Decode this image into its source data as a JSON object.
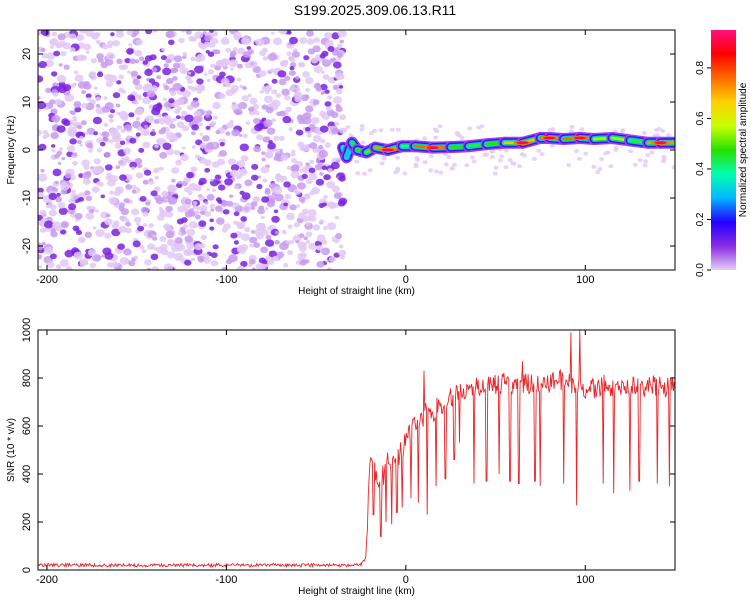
{
  "figure_title": "S199.2025.309.06.13.R11",
  "chart_data": [
    {
      "type": "heatmap",
      "title": "S199.2025.309.06.13.R11",
      "xlabel": "Height of straight line (km)",
      "ylabel": "Frequency (Hz)",
      "xlim": [
        -205,
        150
      ],
      "ylim": [
        -25,
        25
      ],
      "xticks": [
        -200,
        -100,
        0,
        100
      ],
      "xtick_labels": [
        "-200",
        "-100",
        "0",
        "100"
      ],
      "yticks": [
        -20,
        -10,
        0,
        10,
        20
      ],
      "ytick_labels": [
        "-20",
        "-10",
        "0",
        "10",
        "20"
      ],
      "colorbar": {
        "label": "Normalized spectral amplitude",
        "range": [
          0.0,
          0.95
        ],
        "ticks": [
          0.0,
          0.2,
          0.4,
          0.6,
          0.8
        ],
        "tick_labels": [
          "0.0",
          "0.2",
          "0.4",
          "0.6",
          "0.8"
        ],
        "colors": [
          "#e6cdf7",
          "#8a2be2",
          "#2200ff",
          "#00b7ff",
          "#00ffb0",
          "#28e000",
          "#c8ff00",
          "#ffd000",
          "#ff6a00",
          "#ff0000",
          "#ff1080"
        ]
      },
      "noise_region": {
        "x_range": [
          -205,
          -35
        ],
        "level": "0.0-0.2"
      },
      "ridge": [
        {
          "x": -35,
          "freq": 0.5,
          "amp": 0.4
        },
        {
          "x": -33,
          "freq": -1.5,
          "amp": 0.35
        },
        {
          "x": -30,
          "freq": 1.5,
          "amp": 0.35
        },
        {
          "x": -27,
          "freq": 0.0,
          "amp": 0.5
        },
        {
          "x": -22,
          "freq": -0.5,
          "amp": 0.55
        },
        {
          "x": -17,
          "freq": 0.5,
          "amp": 0.6
        },
        {
          "x": -10,
          "freq": 0.0,
          "amp": 0.85
        },
        {
          "x": -2,
          "freq": 0.8,
          "amp": 0.45
        },
        {
          "x": 5,
          "freq": 0.8,
          "amp": 0.4
        },
        {
          "x": 15,
          "freq": 0.5,
          "amp": 0.9
        },
        {
          "x": 25,
          "freq": 0.6,
          "amp": 0.55
        },
        {
          "x": 35,
          "freq": 0.8,
          "amp": 0.45
        },
        {
          "x": 45,
          "freq": 1.2,
          "amp": 0.5
        },
        {
          "x": 55,
          "freq": 1.5,
          "amp": 0.55
        },
        {
          "x": 65,
          "freq": 1.5,
          "amp": 0.8
        },
        {
          "x": 75,
          "freq": 2.5,
          "amp": 0.6
        },
        {
          "x": 80,
          "freq": 2.5,
          "amp": 0.9
        },
        {
          "x": 88,
          "freq": 2.3,
          "amp": 0.6
        },
        {
          "x": 97,
          "freq": 2.5,
          "amp": 0.9
        },
        {
          "x": 105,
          "freq": 2.3,
          "amp": 0.55
        },
        {
          "x": 115,
          "freq": 2.5,
          "amp": 0.65
        },
        {
          "x": 125,
          "freq": 2.0,
          "amp": 0.5
        },
        {
          "x": 135,
          "freq": 1.5,
          "amp": 0.5
        },
        {
          "x": 142,
          "freq": 1.5,
          "amp": 0.85
        },
        {
          "x": 150,
          "freq": 1.5,
          "amp": 0.5
        }
      ]
    },
    {
      "type": "line",
      "xlabel": "Height of straight line (km)",
      "ylabel": "SNR (10 * v/v)",
      "xlim": [
        -205,
        150
      ],
      "ylim": [
        0,
        1000
      ],
      "xticks": [
        -200,
        -100,
        0,
        100
      ],
      "xtick_labels": [
        "-200",
        "-100",
        "0",
        "100"
      ],
      "yticks": [
        0,
        200,
        400,
        600,
        800,
        1000
      ],
      "ytick_labels": [
        "0",
        "200",
        "400",
        "600",
        "800",
        "1000"
      ],
      "series": [
        {
          "name": "SNR",
          "color": "#e8262a",
          "x": [
            -205,
            -180,
            -150,
            -120,
            -100,
            -80,
            -60,
            -40,
            -25,
            -22,
            -20,
            -18,
            -15,
            -12,
            -10,
            -8,
            -5,
            -2,
            0,
            3,
            5,
            8,
            10,
            12,
            15,
            18,
            20,
            25,
            30,
            35,
            40,
            45,
            50,
            55,
            60,
            65,
            70,
            75,
            80,
            85,
            90,
            95,
            100,
            105,
            110,
            115,
            120,
            125,
            130,
            135,
            140,
            145,
            150
          ],
          "y": [
            20,
            20,
            20,
            20,
            20,
            20,
            20,
            20,
            20,
            60,
            480,
            420,
            380,
            400,
            450,
            420,
            470,
            500,
            560,
            560,
            620,
            640,
            640,
            680,
            620,
            700,
            690,
            720,
            740,
            760,
            770,
            760,
            770,
            780,
            770,
            770,
            780,
            790,
            780,
            800,
            780,
            770,
            760,
            760,
            770,
            760,
            770,
            760,
            770,
            760,
            770,
            760,
            760
          ]
        }
      ],
      "dips": [
        {
          "x": -18,
          "y": 230
        },
        {
          "x": -14,
          "y": 140
        },
        {
          "x": -11,
          "y": 200
        },
        {
          "x": -8,
          "y": 190
        },
        {
          "x": -5,
          "y": 240
        },
        {
          "x": -2,
          "y": 260
        },
        {
          "x": 3,
          "y": 300
        },
        {
          "x": 7,
          "y": 280
        },
        {
          "x": 12,
          "y": 230
        },
        {
          "x": 17,
          "y": 350
        },
        {
          "x": 22,
          "y": 380
        },
        {
          "x": 27,
          "y": 460
        },
        {
          "x": 30,
          "y": 530
        },
        {
          "x": 38,
          "y": 360
        },
        {
          "x": 45,
          "y": 370
        },
        {
          "x": 52,
          "y": 400
        },
        {
          "x": 58,
          "y": 370
        },
        {
          "x": 63,
          "y": 360
        },
        {
          "x": 72,
          "y": 370
        },
        {
          "x": 75,
          "y": 350
        },
        {
          "x": 88,
          "y": 360
        },
        {
          "x": 95,
          "y": 270
        },
        {
          "x": 110,
          "y": 360
        },
        {
          "x": 116,
          "y": 320
        },
        {
          "x": 125,
          "y": 330
        },
        {
          "x": 130,
          "y": 370
        },
        {
          "x": 140,
          "y": 360
        },
        {
          "x": 147,
          "y": 350
        }
      ],
      "spikes": [
        {
          "x": 10,
          "y": 830
        },
        {
          "x": 65,
          "y": 870
        },
        {
          "x": 92,
          "y": 990
        },
        {
          "x": 97,
          "y": 1000
        }
      ]
    }
  ]
}
